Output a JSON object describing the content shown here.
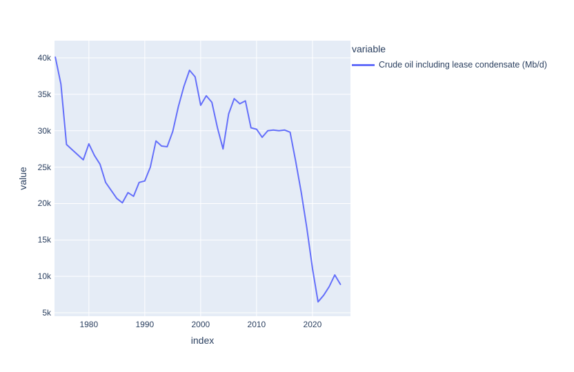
{
  "chart_data": {
    "type": "line",
    "title": "",
    "xlabel": "index",
    "ylabel": "value",
    "legend_title": "variable",
    "legend_position": "top-right-outside",
    "grid": true,
    "colors": {
      "plot_background": "#e5ecf6",
      "grid": "#ffffff",
      "text": "#2a3f5f",
      "line": "#636efa"
    },
    "xlim": [
      1973.85,
      2026.8
    ],
    "ylim": [
      4530,
      42370
    ],
    "x_ticks": [
      {
        "v": 1980,
        "label": "1980"
      },
      {
        "v": 1990,
        "label": "1990"
      },
      {
        "v": 2000,
        "label": "2000"
      },
      {
        "v": 2010,
        "label": "2010"
      },
      {
        "v": 2020,
        "label": "2020"
      }
    ],
    "y_ticks": [
      {
        "v": 5000,
        "label": "5k"
      },
      {
        "v": 10000,
        "label": "10k"
      },
      {
        "v": 15000,
        "label": "15k"
      },
      {
        "v": 20000,
        "label": "20k"
      },
      {
        "v": 25000,
        "label": "25k"
      },
      {
        "v": 30000,
        "label": "30k"
      },
      {
        "v": 35000,
        "label": "35k"
      },
      {
        "v": 40000,
        "label": "40k"
      }
    ],
    "series": [
      {
        "name": "Crude oil including lease condensate (Mb/d)",
        "color": "#636efa",
        "x": [
          1974,
          1975,
          1976,
          1977,
          1978,
          1979,
          1980,
          1981,
          1982,
          1983,
          1984,
          1985,
          1986,
          1987,
          1988,
          1989,
          1990,
          1991,
          1992,
          1993,
          1994,
          1995,
          1996,
          1997,
          1998,
          1999,
          2000,
          2001,
          2002,
          2003,
          2004,
          2005,
          2006,
          2007,
          2008,
          2009,
          2010,
          2011,
          2012,
          2013,
          2014,
          2015,
          2016,
          2017,
          2018,
          2019,
          2020,
          2021,
          2022,
          2023,
          2024,
          2025
        ],
        "y": [
          40100,
          36400,
          28100,
          27400,
          26700,
          26000,
          28200,
          26600,
          25400,
          22900,
          21800,
          20700,
          20100,
          21500,
          21000,
          22900,
          23100,
          25000,
          28600,
          27900,
          27800,
          29900,
          33300,
          36100,
          38300,
          37400,
          33500,
          34800,
          33900,
          30400,
          27500,
          32300,
          34400,
          33700,
          34100,
          30400,
          30200,
          29100,
          30000,
          30100,
          30000,
          30100,
          29800,
          25800,
          21500,
          16600,
          11100,
          6500,
          7400,
          8600,
          10200,
          8900
        ]
      }
    ]
  }
}
